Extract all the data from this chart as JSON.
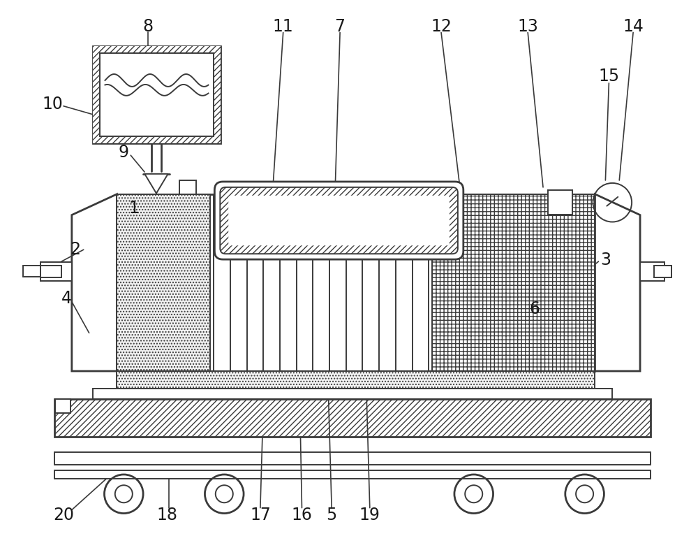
{
  "bg_color": "#ffffff",
  "line_color": "#3a3a3a",
  "fig_width": 10.0,
  "fig_height": 7.87,
  "label_fontsize": 17,
  "label_color": "#1a1a1a",
  "lw": 1.4,
  "lw2": 2.0
}
